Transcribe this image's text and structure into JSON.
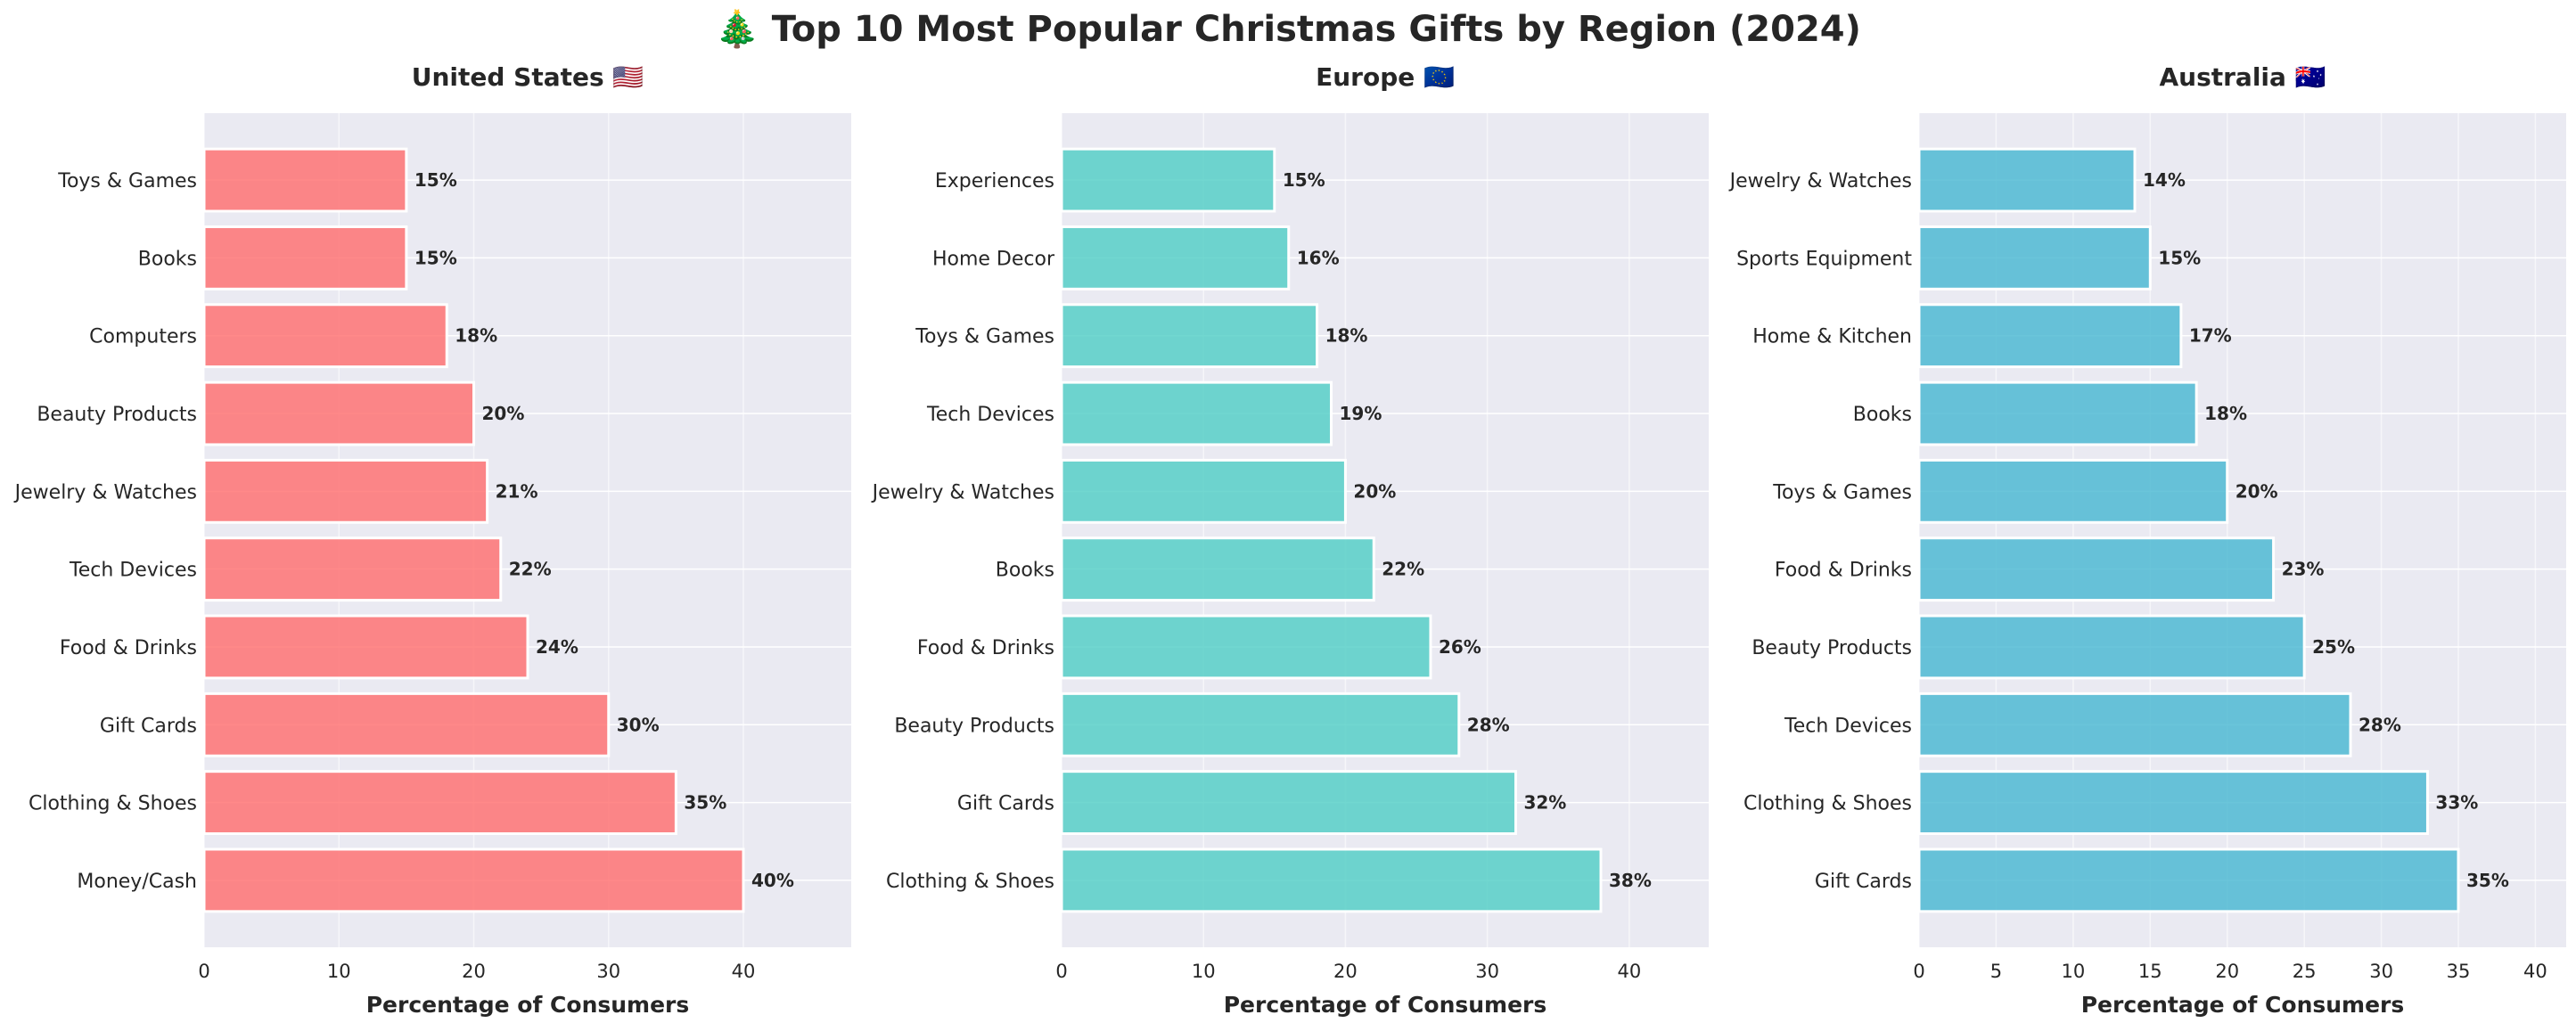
{
  "title": "🎄 Top 10 Most Popular Christmas Gifts by Region (2024)",
  "chart_data": [
    {
      "type": "bar",
      "orientation": "horizontal",
      "title": "United States 🇺🇸",
      "xlabel": "Percentage of Consumers",
      "xlim": [
        0,
        48
      ],
      "xticks": [
        0,
        10,
        20,
        30,
        40
      ],
      "grid": true,
      "color": "#FF6B6B",
      "categories": [
        "Money/Cash",
        "Clothing & Shoes",
        "Gift Cards",
        "Food & Drinks",
        "Tech Devices",
        "Jewelry & Watches",
        "Beauty Products",
        "Computers",
        "Books",
        "Toys & Games"
      ],
      "values": [
        40,
        35,
        30,
        24,
        22,
        21,
        20,
        18,
        15,
        15
      ],
      "labels": [
        "40%",
        "35%",
        "30%",
        "24%",
        "22%",
        "21%",
        "20%",
        "18%",
        "15%",
        "15%"
      ]
    },
    {
      "type": "bar",
      "orientation": "horizontal",
      "title": "Europe 🇪🇺",
      "xlabel": "Percentage of Consumers",
      "xlim": [
        0,
        45.6
      ],
      "xticks": [
        0,
        10,
        20,
        30,
        40
      ],
      "grid": true,
      "color": "#4ECDC4",
      "categories": [
        "Clothing & Shoes",
        "Gift Cards",
        "Beauty Products",
        "Food & Drinks",
        "Books",
        "Jewelry & Watches",
        "Tech Devices",
        "Toys & Games",
        "Home Decor",
        "Experiences"
      ],
      "values": [
        38,
        32,
        28,
        26,
        22,
        20,
        19,
        18,
        16,
        15
      ],
      "labels": [
        "38%",
        "32%",
        "28%",
        "26%",
        "22%",
        "20%",
        "19%",
        "18%",
        "16%",
        "15%"
      ]
    },
    {
      "type": "bar",
      "orientation": "horizontal",
      "title": "Australia 🇦🇺",
      "xlabel": "Percentage of Consumers",
      "xlim": [
        0,
        42
      ],
      "xticks": [
        0,
        5,
        10,
        15,
        20,
        25,
        30,
        35,
        40
      ],
      "grid": true,
      "color": "#45B7D1",
      "categories": [
        "Gift Cards",
        "Clothing & Shoes",
        "Tech Devices",
        "Beauty Products",
        "Food & Drinks",
        "Toys & Games",
        "Books",
        "Home & Kitchen",
        "Sports Equipment",
        "Jewelry & Watches"
      ],
      "values": [
        35,
        33,
        28,
        25,
        23,
        20,
        18,
        17,
        15,
        14
      ],
      "labels": [
        "35%",
        "33%",
        "28%",
        "25%",
        "23%",
        "20%",
        "18%",
        "17%",
        "15%",
        "14%"
      ]
    }
  ]
}
